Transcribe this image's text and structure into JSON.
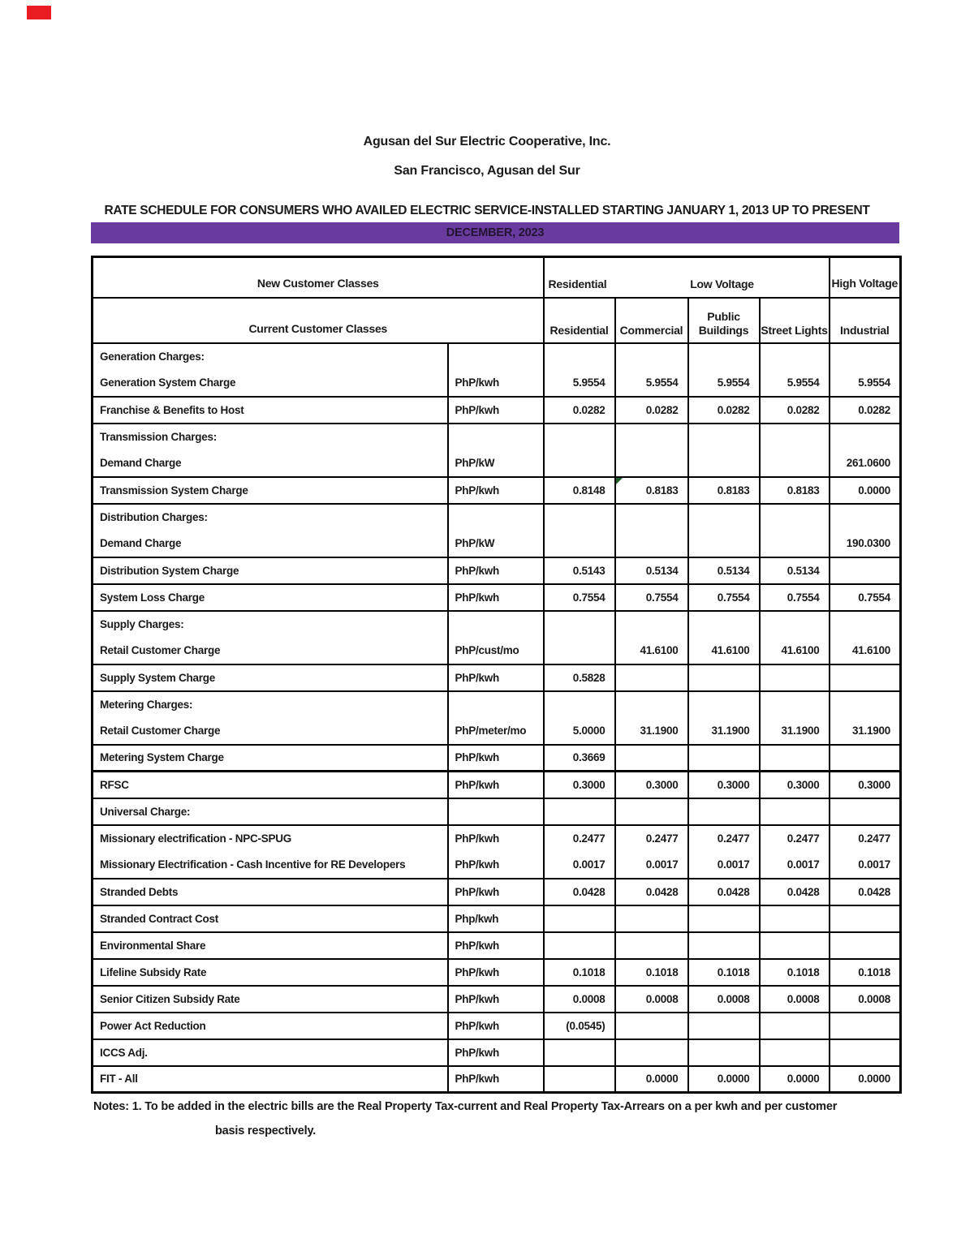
{
  "page": {
    "org_name": "Agusan del Sur Electric Cooperative, Inc.",
    "org_location": "San Francisco, Agusan del Sur",
    "schedule_title": "RATE SCHEDULE FOR CONSUMERS WHO AVAILED ELECTRIC SERVICE-INSTALLED STARTING JANUARY 1, 2013 UP TO  PRESENT",
    "period": "DECEMBER, 2023",
    "accent_purple": "#6a3b9f",
    "flag_red": "#ea1c24",
    "comment_marker_green": "#1e5e2a"
  },
  "table": {
    "header": {
      "new_classes_label": "New Customer Classes",
      "current_classes_label": "Current Customer Classes",
      "group_residential": "Residential",
      "group_low_voltage": "Low Voltage",
      "group_high_voltage": "High Voltage",
      "columns": [
        "Residential",
        "Commercial",
        "Public Buildings",
        "Street Lights",
        "Industrial"
      ]
    },
    "rows": [
      {
        "label": "Generation Charges:",
        "unit": "",
        "values": [
          "",
          "",
          "",
          "",
          ""
        ],
        "no_bottom": true
      },
      {
        "label": "Generation System Charge",
        "unit": "PhP/kwh",
        "values": [
          "5.9554",
          "5.9554",
          "5.9554",
          "5.9554",
          "5.9554"
        ]
      },
      {
        "label": "Franchise & Benefits to Host",
        "unit": "PhP/kwh",
        "values": [
          "0.0282",
          "0.0282",
          "0.0282",
          "0.0282",
          "0.0282"
        ]
      },
      {
        "label": "Transmission Charges:",
        "unit": "",
        "values": [
          "",
          "",
          "",
          "",
          ""
        ],
        "no_bottom": true
      },
      {
        "label": "Demand Charge",
        "unit": "PhP/kW",
        "values": [
          "",
          "",
          "",
          "",
          "261.0600"
        ]
      },
      {
        "label": "Transmission System Charge",
        "unit": "PhP/kwh",
        "values": [
          "0.8148",
          "0.8183",
          "0.8183",
          "0.8183",
          "0.0000"
        ],
        "marker_col": 1
      },
      {
        "label": "Distribution Charges:",
        "unit": "",
        "values": [
          "",
          "",
          "",
          "",
          ""
        ],
        "no_bottom": true
      },
      {
        "label": "Demand Charge",
        "unit": "PhP/kW",
        "values": [
          "",
          "",
          "",
          "",
          "190.0300"
        ]
      },
      {
        "label": "Distribution System Charge",
        "unit": "PhP/kwh",
        "values": [
          "0.5143",
          "0.5134",
          "0.5134",
          "0.5134",
          ""
        ]
      },
      {
        "label": "System Loss Charge",
        "unit": "PhP/kwh",
        "values": [
          "0.7554",
          "0.7554",
          "0.7554",
          "0.7554",
          "0.7554"
        ]
      },
      {
        "label": "Supply Charges:",
        "unit": "",
        "values": [
          "",
          "",
          "",
          "",
          ""
        ],
        "no_bottom": true
      },
      {
        "label": "Retail Customer Charge",
        "unit": "PhP/cust/mo",
        "values": [
          "",
          "41.6100",
          "41.6100",
          "41.6100",
          "41.6100"
        ]
      },
      {
        "label": "Supply System Charge",
        "unit": "PhP/kwh",
        "values": [
          "0.5828",
          "",
          "",
          "",
          ""
        ]
      },
      {
        "label": "Metering Charges:",
        "unit": "",
        "values": [
          "",
          "",
          "",
          "",
          ""
        ],
        "no_bottom": true
      },
      {
        "label": "Retail Customer Charge",
        "unit": "PhP/meter/mo",
        "values": [
          "5.0000",
          "31.1900",
          "31.1900",
          "31.1900",
          "31.1900"
        ]
      },
      {
        "label": "Metering System Charge",
        "unit": "PhP/kwh",
        "values": [
          "0.3669",
          "",
          "",
          "",
          ""
        ]
      },
      {
        "label": "RFSC",
        "unit": "PhP/kwh",
        "values": [
          "0.3000",
          "0.3000",
          "0.3000",
          "0.3000",
          "0.3000"
        ],
        "thick_top": true
      },
      {
        "label": "Universal Charge:",
        "unit": "",
        "values": [
          "",
          "",
          "",
          "",
          ""
        ]
      },
      {
        "label": "Missionary electrification - NPC-SPUG",
        "unit": "PhP/kwh",
        "values": [
          "0.2477",
          "0.2477",
          "0.2477",
          "0.2477",
          "0.2477"
        ],
        "no_bottom": true
      },
      {
        "label": "Missionary Electrification - Cash Incentive for RE Developers",
        "unit": "PhP/kwh",
        "values": [
          "0.0017",
          "0.0017",
          "0.0017",
          "0.0017",
          "0.0017"
        ]
      },
      {
        "label": "Stranded Debts",
        "unit": "PhP/kwh",
        "values": [
          "0.0428",
          "0.0428",
          "0.0428",
          "0.0428",
          "0.0428"
        ]
      },
      {
        "label": "Stranded Contract Cost",
        "unit": "Php/kwh",
        "values": [
          "",
          "",
          "",
          "",
          ""
        ]
      },
      {
        "label": "Environmental Share",
        "unit": "PhP/kwh",
        "values": [
          "",
          "",
          "",
          "",
          ""
        ]
      },
      {
        "label": "Lifeline Subsidy Rate",
        "unit": "PhP/kwh",
        "values": [
          "0.1018",
          "0.1018",
          "0.1018",
          "0.1018",
          "0.1018"
        ]
      },
      {
        "label": "Senior Citizen Subsidy Rate",
        "unit": "PhP/kwh",
        "values": [
          "0.0008",
          "0.0008",
          "0.0008",
          "0.0008",
          "0.0008"
        ]
      },
      {
        "label": "Power Act Reduction",
        "unit": "PhP/kwh",
        "values": [
          "(0.0545)",
          "",
          "",
          "",
          ""
        ]
      },
      {
        "label": "ICCS Adj.",
        "unit": "PhP/kwh",
        "values": [
          "",
          "",
          "",
          "",
          ""
        ]
      },
      {
        "label": "FIT - All",
        "unit": "PhP/kwh",
        "values": [
          "",
          "0.0000",
          "0.0000",
          "0.0000",
          "0.0000"
        ]
      }
    ]
  },
  "notes": {
    "line1": "Notes: 1. To be added in the electric bills are the Real Property Tax-current and Real Property Tax-Arrears on a per kwh and per customer",
    "line2": "basis respectively."
  }
}
